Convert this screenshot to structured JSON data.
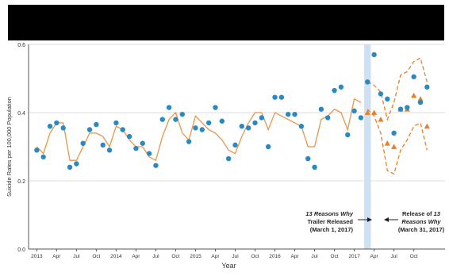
{
  "chart_data": {
    "type": "scatter",
    "ylabel": "Suicide Rates per 100,000 Population",
    "xlabel": "Year",
    "ylim": [
      0.0,
      0.6
    ],
    "yticks": [
      "0.0",
      "0.2",
      "0.4",
      "0.6"
    ],
    "x_months": 49,
    "xtick_labels": [
      "2013",
      "Apr",
      "Jul",
      "Oct",
      "2014",
      "Apr",
      "Jul",
      "Oct",
      "2015",
      "Apr",
      "Jul",
      "Oct",
      "2016",
      "Apr",
      "Jul",
      "Oct",
      "2017",
      "Apr",
      "Jul",
      "Oct"
    ],
    "grid": "horizontal",
    "series": [
      {
        "values": [
          0.29,
          0.27,
          0.36,
          0.37,
          0.355,
          0.24,
          0.25,
          0.31,
          0.35,
          0.365,
          0.305,
          0.29,
          0.37,
          0.35,
          0.33,
          0.295,
          0.31,
          0.28,
          0.245,
          0.38,
          0.415,
          0.38,
          0.395,
          0.315,
          0.355,
          0.35,
          0.37,
          0.415,
          0.375,
          0.265,
          0.305,
          0.36,
          0.355,
          0.37,
          0.385,
          0.3,
          0.445,
          0.445,
          0.395,
          0.395,
          0.36,
          0.265,
          0.24,
          0.41,
          0.385,
          0.465,
          0.475,
          0.335,
          0.405,
          0.385,
          0.49,
          0.57,
          0.455,
          0.44,
          0.34,
          0.41,
          0.415,
          0.505,
          0.43,
          0.475
        ]
      },
      {
        "values": [
          0.3,
          0.28,
          0.34,
          0.37,
          0.37,
          0.26,
          0.26,
          0.3,
          0.34,
          0.34,
          0.33,
          0.3,
          0.36,
          0.35,
          0.32,
          0.3,
          0.3,
          0.27,
          0.26,
          0.33,
          0.38,
          0.4,
          0.34,
          0.32,
          0.39,
          0.37,
          0.35,
          0.34,
          0.32,
          0.29,
          0.28,
          0.33,
          0.37,
          0.4,
          0.4,
          0.35,
          0.4,
          0.39,
          0.38,
          0.37,
          0.36,
          0.3,
          0.3,
          0.38,
          0.39,
          0.41,
          0.4,
          0.35,
          0.44,
          0.43
        ]
      },
      {
        "x_start": 50,
        "values": [
          0.4,
          0.4,
          0.38,
          0.31,
          0.3,
          0.41,
          0.41,
          0.45,
          0.44,
          0.36
        ]
      }
    ],
    "forecast_upper": [
      0.49,
      0.48,
      0.46,
      0.38,
      0.43,
      0.51,
      0.52,
      0.55,
      0.56,
      0.49
    ],
    "forecast_lower": [
      0.41,
      0.39,
      0.34,
      0.23,
      0.22,
      0.29,
      0.32,
      0.36,
      0.37,
      0.29
    ],
    "release_band_x": [
      49.5,
      50.5
    ],
    "annotations": {
      "trailer": {
        "title": "13 Reasons Why",
        "line2": "Trailer Released",
        "line3": "(March 1, 2017)"
      },
      "release": {
        "line1a": "Release of ",
        "line1b": "13",
        "line2": "Reasons Why",
        "line3": "(March 31, 2017)"
      }
    },
    "colors": {
      "observed": "#2a8ac0",
      "fitted": "#e8954a",
      "forecast": "#e87f25",
      "band": "#cfe0f4",
      "grid": "#dddddd",
      "axis": "#555555"
    }
  }
}
